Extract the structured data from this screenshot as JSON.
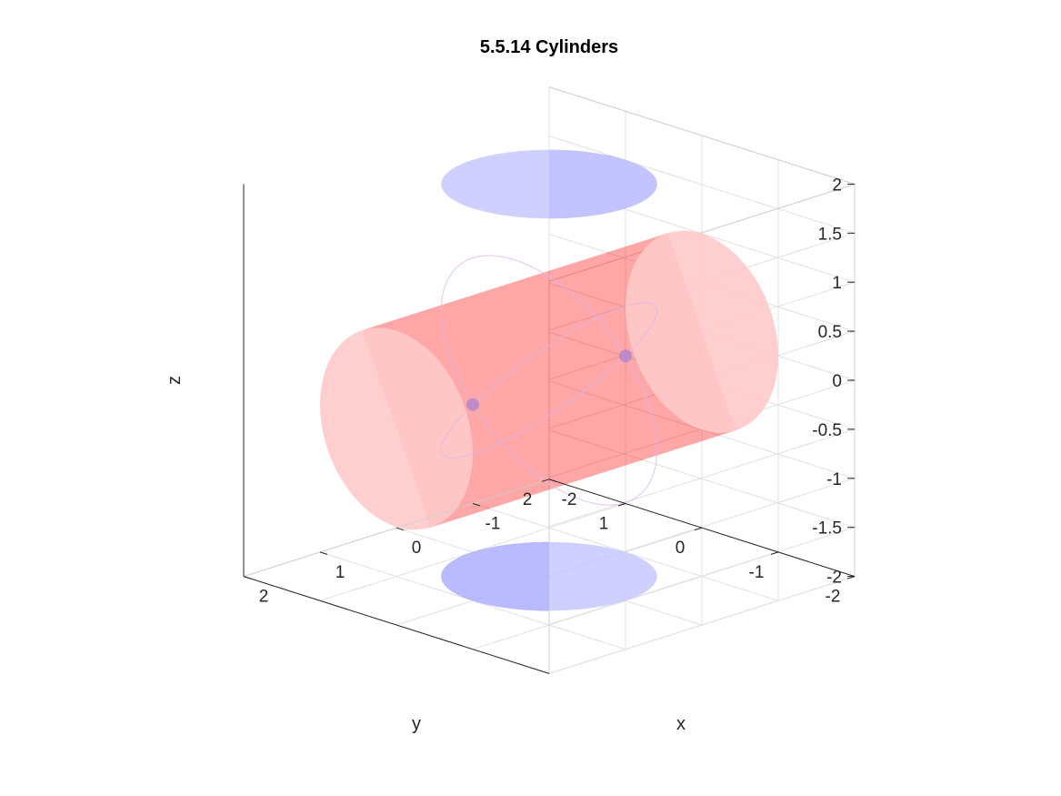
{
  "chart_data": {
    "type": "3d-surface",
    "title": "5.5.14 Cylinders",
    "xlabel": "x",
    "ylabel": "y",
    "zlabel": "z",
    "xlim": [
      -2,
      2
    ],
    "ylim": [
      -2,
      2
    ],
    "zlim": [
      -2,
      2
    ],
    "grid": true,
    "x_ticks": [
      "-2",
      "-1",
      "0",
      "1",
      "2"
    ],
    "y_ticks": [
      "-2",
      "-1",
      "0",
      "1",
      "2"
    ],
    "z_ticks": [
      "-2",
      "-1.5",
      "-1",
      "-0.5",
      "0",
      "0.5",
      "1",
      "1.5",
      "2"
    ],
    "series": [
      {
        "surface": "x^2 + y^2 = 1",
        "axis": "z",
        "radius": 1,
        "extent": [
          -2,
          2
        ],
        "color": "#0000ff",
        "face_alpha": 0.35
      },
      {
        "surface": "y^2 + z^2 = 1",
        "axis": "x",
        "radius": 1,
        "extent": [
          -2,
          2
        ],
        "color": "#ff0000",
        "face_alpha": 0.2
      }
    ]
  }
}
